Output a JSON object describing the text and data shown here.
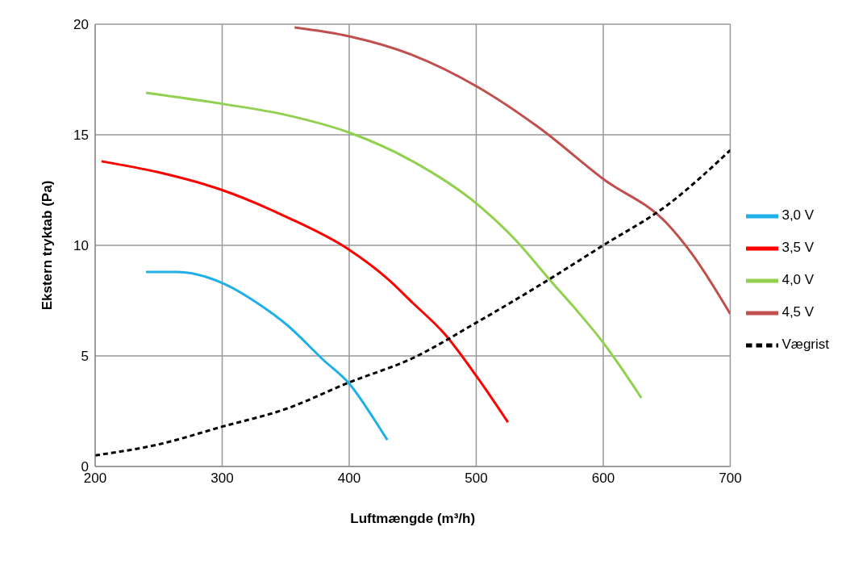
{
  "chart_data": {
    "type": "line",
    "xlabel": "Luftmængde (m³/h)",
    "ylabel": "Ekstern tryktab (Pa)",
    "xlim": [
      200,
      700
    ],
    "xticks": [
      200,
      300,
      400,
      500,
      600,
      700
    ],
    "ylim": [
      0,
      20
    ],
    "yticks": [
      0,
      5,
      10,
      15,
      20
    ],
    "grid": true,
    "legend": "right",
    "marker": "none",
    "series": [
      {
        "name": "3,0 V",
        "color": "#1fb0e8",
        "line_style": "solid",
        "x": [
          240,
          265,
          300,
          330,
          350,
          380,
          400,
          420,
          430
        ],
        "values": [
          8.8,
          8.8,
          8.3,
          7.3,
          6.45,
          4.8,
          3.75,
          2.1,
          1.2
        ]
      },
      {
        "name": "3,5 V",
        "color": "#ff0000",
        "line_style": "solid",
        "x": [
          205,
          250,
          300,
          350,
          400,
          430,
          450,
          475,
          500,
          525
        ],
        "values": [
          13.8,
          13.3,
          12.5,
          11.3,
          9.8,
          8.5,
          7.4,
          6.0,
          4.1,
          2.0
        ]
      },
      {
        "name": "4,0 V",
        "color": "#92d050",
        "line_style": "solid",
        "x": [
          240,
          300,
          350,
          400,
          450,
          500,
          530,
          560,
          580,
          600,
          630
        ],
        "values": [
          16.9,
          16.4,
          15.9,
          15.1,
          13.8,
          11.9,
          10.3,
          8.3,
          7.0,
          5.6,
          3.1
        ]
      },
      {
        "name": "4,5 V",
        "color": "#c0504d",
        "line_style": "solid",
        "x": [
          357,
          400,
          450,
          500,
          550,
          600,
          650,
          670,
          700
        ],
        "values": [
          19.85,
          19.45,
          18.6,
          17.2,
          15.3,
          13.0,
          11.0,
          9.6,
          6.9
        ]
      },
      {
        "name": "Vægrist",
        "color": "#000000",
        "line_style": "dashed",
        "x": [
          200,
          250,
          300,
          350,
          400,
          450,
          500,
          550,
          600,
          650,
          700
        ],
        "values": [
          0.5,
          1.0,
          1.8,
          2.6,
          3.8,
          4.9,
          6.5,
          8.2,
          10.0,
          11.8,
          14.3
        ]
      }
    ]
  }
}
